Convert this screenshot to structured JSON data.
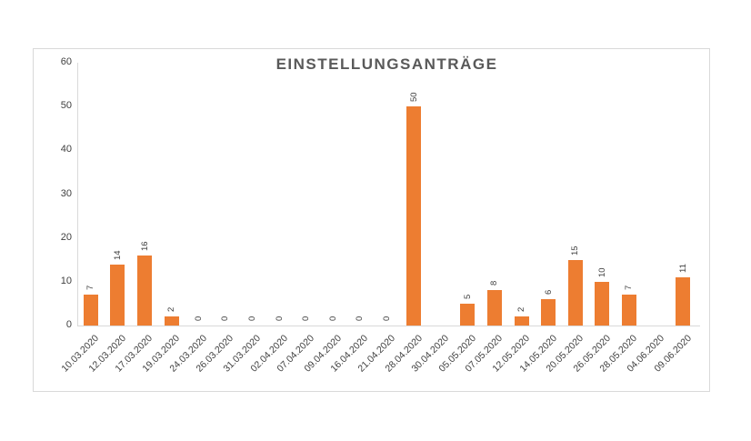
{
  "chart_data": {
    "type": "bar",
    "title": "EINSTELLUNGSANTRÄGE",
    "categories": [
      "10.03.2020",
      "12.03.2020",
      "17.03.2020",
      "19.03.2020",
      "24.03.2020",
      "26.03.2020",
      "31.03.2020",
      "02.04.2020",
      "07.04.2020",
      "09.04.2020",
      "16.04.2020",
      "21.04.2020",
      "28.04.2020",
      "30.04.2020",
      "05.05.2020",
      "07.05.2020",
      "12.05.2020",
      "14.05.2020",
      "20.05.2020",
      "26.05.2020",
      "28.05.2020",
      "04.06.2020",
      "09.06.2020"
    ],
    "values": [
      7,
      14,
      16,
      2,
      0,
      0,
      0,
      0,
      0,
      0,
      0,
      0,
      50,
      null,
      5,
      8,
      2,
      6,
      15,
      10,
      7,
      null,
      11
    ],
    "data_labels": [
      "7",
      "14",
      "16",
      "2",
      "0",
      "0",
      "0",
      "0",
      "0",
      "0",
      "0",
      "0",
      "50",
      "",
      "5",
      "8",
      "2",
      "6",
      "15",
      "10",
      "7",
      "",
      "11"
    ],
    "yticks": [
      0,
      10,
      20,
      30,
      40,
      50,
      60
    ],
    "ylim": [
      0,
      60
    ],
    "xlabel": "",
    "ylabel": "",
    "legend": "none",
    "grid": false,
    "colors": {
      "bar": "#ED7D31",
      "title": "#595959",
      "tick_label": "#404040",
      "value_label": "#404040",
      "axis_line": "#D9D9D9",
      "frame_border": "#D9D9D9",
      "background": "#FFFFFF"
    }
  }
}
